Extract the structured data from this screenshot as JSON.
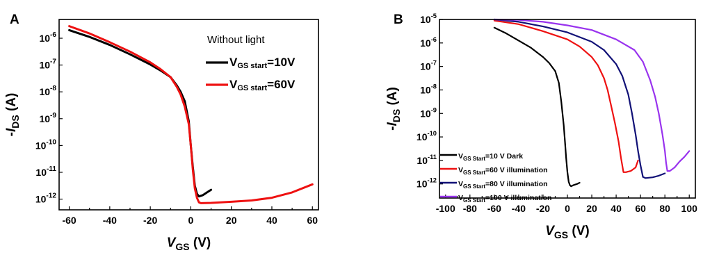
{
  "chart_data": [
    {
      "panel": "A",
      "type": "line",
      "xlabel_main": "V",
      "xlabel_sub": "GS",
      "xlabel_unit": " (V)",
      "ylabel_prefix": "-",
      "ylabel_main": "I",
      "ylabel_sub": "DS",
      "ylabel_unit": " (A)",
      "xlim": [
        -65,
        63
      ],
      "ylim_log10": [
        -12.4,
        -5.3
      ],
      "yscale": "log",
      "xticks": [
        -60,
        -40,
        -20,
        0,
        20,
        40,
        60
      ],
      "yticks_exp": [
        -12,
        -11,
        -10,
        -9,
        -8,
        -7,
        -6
      ],
      "legend_title": "Without light",
      "series": [
        {
          "name_main": "V",
          "name_sub": "GS start",
          "name_rest": "=10V",
          "color": "#000000",
          "x": [
            -60,
            -50,
            -40,
            -30,
            -20,
            -15,
            -10,
            -7,
            -5,
            -3,
            -1,
            0,
            1,
            2,
            3,
            4,
            6,
            8,
            10
          ],
          "y_log10": [
            -5.7,
            -5.95,
            -6.25,
            -6.6,
            -6.98,
            -7.2,
            -7.45,
            -7.75,
            -8.0,
            -8.35,
            -9.1,
            -10.0,
            -10.8,
            -11.5,
            -11.8,
            -11.9,
            -11.85,
            -11.75,
            -11.65
          ]
        },
        {
          "name_main": "V",
          "name_sub": "GS start",
          "name_rest": "=60V",
          "color": "#ee1111",
          "x": [
            -60,
            -50,
            -40,
            -30,
            -20,
            -15,
            -10,
            -7,
            -5,
            -3,
            -1,
            0,
            1,
            2,
            3,
            4,
            5,
            10,
            20,
            30,
            40,
            50,
            60
          ],
          "y_log10": [
            -5.55,
            -5.82,
            -6.15,
            -6.5,
            -6.9,
            -7.15,
            -7.45,
            -7.8,
            -8.1,
            -8.55,
            -9.2,
            -10.0,
            -10.9,
            -11.6,
            -11.95,
            -12.12,
            -12.15,
            -12.14,
            -12.1,
            -12.05,
            -11.95,
            -11.75,
            -11.45
          ]
        }
      ]
    },
    {
      "panel": "B",
      "type": "line",
      "xlabel_main": "V",
      "xlabel_sub": "GS",
      "xlabel_unit": " (V)",
      "ylabel_prefix": "-",
      "ylabel_main": "I",
      "ylabel_sub": "DS",
      "ylabel_unit": " (A)",
      "xlim": [
        -105,
        105
      ],
      "ylim_log10": [
        -12.6,
        -5.0
      ],
      "yscale": "log",
      "xticks": [
        -100,
        -80,
        -60,
        -40,
        -20,
        0,
        20,
        40,
        60,
        80,
        100
      ],
      "yticks_exp": [
        -12,
        -11,
        -10,
        -9,
        -8,
        -7,
        -6,
        -5
      ],
      "series": [
        {
          "name_main": "V",
          "name_sub": "GS Start",
          "name_rest": "=10 V Dark",
          "color": "#000000",
          "x": [
            -60,
            -50,
            -40,
            -30,
            -20,
            -15,
            -10,
            -7,
            -5,
            -3,
            -2,
            -1,
            0,
            1,
            2,
            3,
            5,
            8,
            10
          ],
          "y_log10": [
            -5.35,
            -5.6,
            -5.9,
            -6.2,
            -6.6,
            -6.85,
            -7.2,
            -7.7,
            -8.5,
            -9.5,
            -10.2,
            -10.9,
            -11.5,
            -11.9,
            -12.05,
            -12.1,
            -12.05,
            -12.0,
            -11.95
          ]
        },
        {
          "name_main": "V",
          "name_sub": "GS Start",
          "name_rest": "=60 V illumination",
          "color": "#ee1111",
          "x": [
            -60,
            -40,
            -20,
            0,
            10,
            20,
            25,
            30,
            33,
            36,
            39,
            42,
            44,
            46,
            48,
            52,
            56,
            58
          ],
          "y_log10": [
            -5.05,
            -5.2,
            -5.5,
            -5.85,
            -6.15,
            -6.6,
            -6.95,
            -7.5,
            -8.0,
            -8.7,
            -9.4,
            -10.2,
            -10.9,
            -11.5,
            -11.5,
            -11.45,
            -11.3,
            -11.0
          ]
        },
        {
          "name_main": "V",
          "name_sub": "GS Start",
          "name_rest": "=80 V illumination",
          "color": "#111177",
          "x": [
            -60,
            -40,
            -20,
            0,
            20,
            30,
            40,
            45,
            50,
            53,
            56,
            58,
            60,
            62,
            64,
            70,
            75,
            80
          ],
          "y_log10": [
            -5.0,
            -5.1,
            -5.3,
            -5.55,
            -5.95,
            -6.3,
            -6.9,
            -7.4,
            -8.2,
            -9.0,
            -9.9,
            -10.6,
            -11.2,
            -11.7,
            -11.75,
            -11.72,
            -11.65,
            -11.55
          ]
        },
        {
          "name_main": "V",
          "name_sub": "GS Start",
          "name_rest": "=100 V illumination",
          "color": "#9933ee",
          "x": [
            -60,
            -40,
            -20,
            0,
            20,
            40,
            55,
            62,
            68,
            72,
            75,
            78,
            80,
            81,
            82,
            84,
            88,
            92,
            96,
            100
          ],
          "y_log10": [
            -5.0,
            -5.02,
            -5.1,
            -5.25,
            -5.45,
            -5.85,
            -6.3,
            -6.8,
            -7.6,
            -8.3,
            -9.0,
            -9.9,
            -10.6,
            -11.1,
            -11.45,
            -11.45,
            -11.3,
            -11.05,
            -10.85,
            -10.6
          ]
        }
      ]
    }
  ]
}
